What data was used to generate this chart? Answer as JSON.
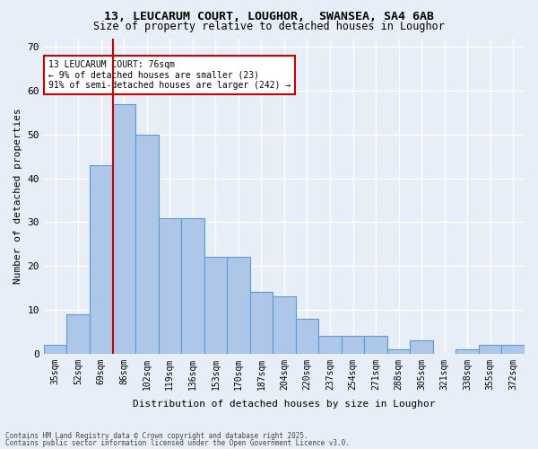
{
  "title1": "13, LEUCARUM COURT, LOUGHOR,  SWANSEA, SA4 6AB",
  "title2": "Size of property relative to detached houses in Loughor",
  "xlabel": "Distribution of detached houses by size in Loughor",
  "ylabel": "Number of detached properties",
  "categories": [
    "35sqm",
    "52sqm",
    "69sqm",
    "86sqm",
    "102sqm",
    "119sqm",
    "136sqm",
    "153sqm",
    "170sqm",
    "187sqm",
    "204sqm",
    "220sqm",
    "237sqm",
    "254sqm",
    "271sqm",
    "288sqm",
    "305sqm",
    "321sqm",
    "338sqm",
    "355sqm",
    "372sqm"
  ],
  "values": [
    2,
    9,
    43,
    57,
    50,
    31,
    31,
    22,
    22,
    14,
    13,
    8,
    4,
    4,
    4,
    1,
    3,
    0,
    1,
    2,
    2
  ],
  "bar_color": "#aec6e8",
  "bar_edge_color": "#5b9bd5",
  "background_color": "#e8eef7",
  "grid_color": "#ffffff",
  "property_line_x": 2,
  "annotation_text": "13 LEUCARUM COURT: 76sqm\n← 9% of detached houses are smaller (23)\n91% of semi-detached houses are larger (242) →",
  "annotation_box_color": "#ffffff",
  "annotation_box_edge_color": "#cc0000",
  "ylim": [
    0,
    72
  ],
  "yticks": [
    0,
    10,
    20,
    30,
    40,
    50,
    60,
    70
  ],
  "footer1": "Contains HM Land Registry data © Crown copyright and database right 2025.",
  "footer2": "Contains public sector information licensed under the Open Government Licence v3.0."
}
